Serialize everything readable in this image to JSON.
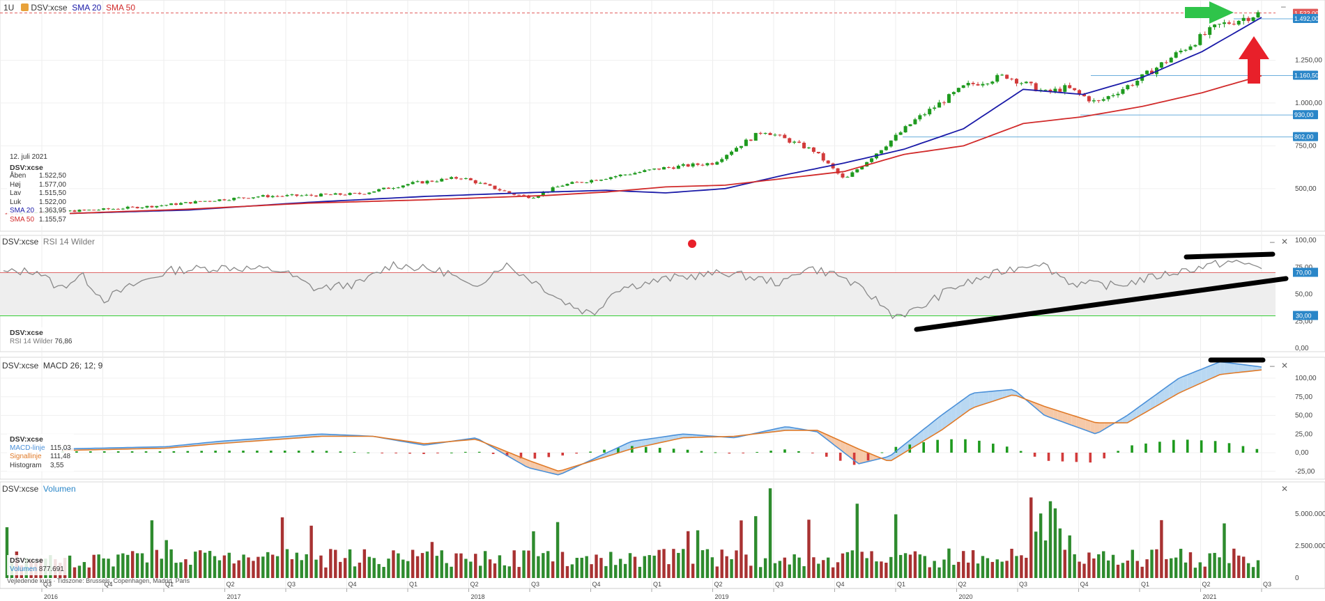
{
  "header": {
    "interval": "1U",
    "symbol": "DSV:xcse",
    "sma20_label": "SMA 20",
    "sma50_label": "SMA 50"
  },
  "info_box": {
    "date": "12. juli 2021",
    "symbol": "DSV:xcse",
    "rows": [
      {
        "k": "Åben",
        "v": "1.522,50"
      },
      {
        "k": "Høj",
        "v": "1.577,00"
      },
      {
        "k": "Lav",
        "v": "1.515,50"
      },
      {
        "k": "Luk",
        "v": "1.522,00"
      },
      {
        "k": "SMA 20",
        "v": "1.363,95"
      },
      {
        "k": "SMA 50",
        "v": "1.155,57"
      }
    ]
  },
  "rsi_panel": {
    "symbol": "DSV:xcse",
    "title": "RSI 14 Wilder",
    "value_label": "RSI 14 Wilder",
    "value": "76,86"
  },
  "macd_panel": {
    "symbol": "DSV:xcse",
    "title": "MACD 26; 12; 9",
    "macd_label": "MACD-linje",
    "macd_value": "115,03",
    "signal_label": "Signallinje",
    "signal_value": "111,48",
    "hist_label": "Histogram",
    "hist_value": "3,55"
  },
  "volume_panel": {
    "symbol": "DSV:xcse",
    "title": "Volumen",
    "value_label": "Volumen",
    "value": "877.691"
  },
  "footer_note": "Vejledende kurs · Tidszone: Brussels, Copenhagen, Madrid, Paris",
  "colors": {
    "up": "#1e9a1e",
    "down": "#d23b3b",
    "sma20": "#1a1aa8",
    "sma50": "#d12a2a",
    "rsi": "#888888",
    "macd": "#4a90d9",
    "signal": "#e07a28",
    "vol_up": "#2e8b2e",
    "vol_down": "#a83232",
    "label_bg": "#2a86c8"
  },
  "chart_data": [
    {
      "type": "candlestick",
      "title": "DSV:xcse",
      "x_range": [
        "2016-Q3",
        "2021-Q3"
      ],
      "y_ticks": [
        "500,00",
        "750,00",
        "1.000,00",
        "1.250,00"
      ],
      "price_labels": [
        "1.522,00",
        "1.492,00",
        "1.160,50",
        "930,00",
        "802,00"
      ],
      "horizontal_levels": [
        1492,
        1160.5,
        930,
        802
      ],
      "series": [
        {
          "name": "SMA 20",
          "anchors": [
            [
              0,
              355
            ],
            [
              0.1,
              375
            ],
            [
              0.2,
              420
            ],
            [
              0.3,
              455
            ],
            [
              0.4,
              480
            ],
            [
              0.45,
              490
            ],
            [
              0.5,
              475
            ],
            [
              0.55,
              500
            ],
            [
              0.6,
              580
            ],
            [
              0.65,
              650
            ],
            [
              0.7,
              730
            ],
            [
              0.75,
              850
            ],
            [
              0.8,
              1080
            ],
            [
              0.85,
              1050
            ],
            [
              0.9,
              1150
            ],
            [
              0.95,
              1300
            ],
            [
              1,
              1500
            ]
          ]
        },
        {
          "name": "SMA 50",
          "anchors": [
            [
              0,
              355
            ],
            [
              0.1,
              380
            ],
            [
              0.2,
              415
            ],
            [
              0.3,
              435
            ],
            [
              0.4,
              460
            ],
            [
              0.45,
              480
            ],
            [
              0.5,
              510
            ],
            [
              0.55,
              520
            ],
            [
              0.6,
              560
            ],
            [
              0.65,
              600
            ],
            [
              0.7,
              700
            ],
            [
              0.75,
              750
            ],
            [
              0.8,
              880
            ],
            [
              0.85,
              920
            ],
            [
              0.9,
              980
            ],
            [
              0.95,
              1060
            ],
            [
              1,
              1160
            ]
          ]
        }
      ],
      "price_path": [
        [
          0,
          355
        ],
        [
          0.05,
          365
        ],
        [
          0.1,
          380
        ],
        [
          0.15,
          400
        ],
        [
          0.2,
          430
        ],
        [
          0.25,
          455
        ],
        [
          0.3,
          460
        ],
        [
          0.35,
          470
        ],
        [
          0.4,
          530
        ],
        [
          0.45,
          565
        ],
        [
          0.5,
          470
        ],
        [
          0.52,
          450
        ],
        [
          0.55,
          520
        ],
        [
          0.6,
          570
        ],
        [
          0.65,
          620
        ],
        [
          0.7,
          650
        ],
        [
          0.72,
          730
        ],
        [
          0.75,
          840
        ],
        [
          0.8,
          720
        ],
        [
          0.83,
          550
        ],
        [
          0.86,
          700
        ],
        [
          0.9,
          900
        ],
        [
          0.95,
          1100
        ],
        [
          0.99,
          1160
        ],
        [
          1.03,
          1060
        ],
        [
          1.05,
          1090
        ],
        [
          1.08,
          1000
        ],
        [
          1.12,
          1130
        ],
        [
          1.17,
          1330
        ],
        [
          1.2,
          1450
        ],
        [
          1.24,
          1522
        ]
      ]
    },
    {
      "type": "line",
      "title": "RSI 14 Wilder",
      "y_ticks": [
        "0,00",
        "25,00",
        "50,00",
        "75,00",
        "100,00"
      ],
      "levels": [
        30,
        70
      ],
      "level_labels": [
        "30,00",
        "70,00"
      ],
      "last_value": 76.86
    },
    {
      "type": "line",
      "title": "MACD 26; 12; 9",
      "y_ticks": [
        "-25,00",
        "0,00",
        "25,00",
        "50,00",
        "75,00",
        "100,00"
      ],
      "series": [
        {
          "name": "MACD-linje",
          "last": 115.03
        },
        {
          "name": "Signallinje",
          "last": 111.48
        },
        {
          "name": "Histogram",
          "last": 3.55
        }
      ]
    },
    {
      "type": "bar",
      "title": "Volumen",
      "y_ticks": [
        "0",
        "2.500.000",
        "5.000.000"
      ],
      "last_value": 877691
    }
  ],
  "x_axis": {
    "quarters": [
      "Q3",
      "Q4",
      "Q1",
      "Q2",
      "Q3",
      "Q4",
      "Q1",
      "Q2",
      "Q3",
      "Q4",
      "Q1",
      "Q2",
      "Q3",
      "Q4",
      "Q1",
      "Q2",
      "Q3",
      "Q4",
      "Q1",
      "Q2",
      "Q3"
    ],
    "years": [
      "2016",
      "2017",
      "2018",
      "2019",
      "2020",
      "2021"
    ]
  }
}
